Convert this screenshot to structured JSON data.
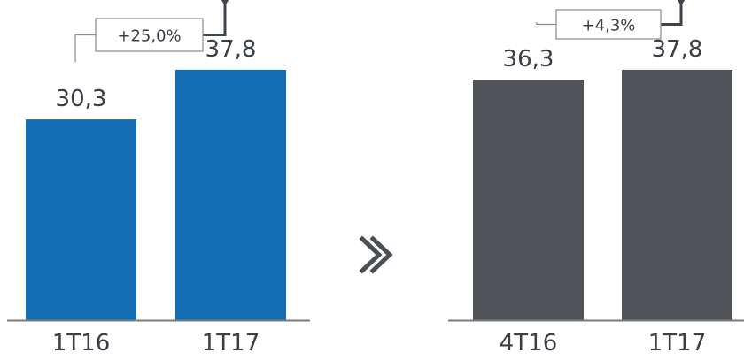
{
  "colors": {
    "left_bar": "#136db3",
    "right_bar": "#505357",
    "axis": "#7a7a7a",
    "bracket": "#8a8a8a",
    "arrow": "#3f444a",
    "chevron": "#4a4f55",
    "text": "#3a3f45"
  },
  "icons": {
    "separator": "double-chevron-right-icon"
  },
  "chart_data": [
    {
      "type": "bar",
      "categories": [
        "1T16",
        "1T17"
      ],
      "values": [
        30.3,
        37.8
      ],
      "value_labels": [
        "30,3",
        "37,8"
      ],
      "change_label": "+25,0%",
      "ylim": [
        0,
        47
      ],
      "title": "",
      "xlabel": "",
      "ylabel": ""
    },
    {
      "type": "bar",
      "categories": [
        "4T16",
        "1T17"
      ],
      "values": [
        36.3,
        37.8
      ],
      "value_labels": [
        "36,3",
        "37,8"
      ],
      "change_label": "+4,3%",
      "ylim": [
        0,
        47
      ],
      "title": "",
      "xlabel": "",
      "ylabel": ""
    }
  ]
}
